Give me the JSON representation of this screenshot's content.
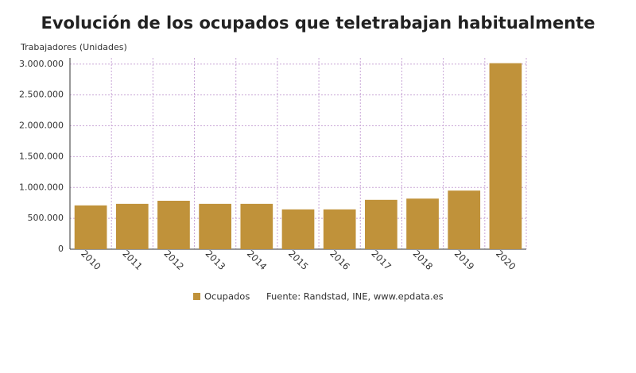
{
  "chart_data": {
    "type": "bar",
    "title": "Evolución de los ocupados que teletrabajan habitualmente",
    "y_label": "Trabajadores (Unidades)",
    "categories": [
      "2010",
      "2011",
      "2012",
      "2013",
      "2014",
      "2015",
      "2016",
      "2017",
      "2018",
      "2019",
      "2020"
    ],
    "series": [
      {
        "name": "Ocupados",
        "color": "#c0923a",
        "values": [
          710000,
          735000,
          785000,
          735000,
          735000,
          645000,
          645000,
          800000,
          820000,
          950000,
          3015000
        ]
      }
    ],
    "ylim": [
      0,
      3100000
    ],
    "yticks": [
      0,
      {
        "value": 500000,
        "label": "500.000"
      },
      {
        "value": 1000000,
        "label": "1.000.000"
      },
      {
        "value": 1500000,
        "label": "1.500.000"
      },
      {
        "value": 2000000,
        "label": "2.000.000"
      },
      {
        "value": 2500000,
        "label": "2.500.000"
      },
      {
        "value": 3000000,
        "label": "3.000.000"
      }
    ],
    "grid": true,
    "source": "Fuente: Randstad, INE, www.epdata.es"
  }
}
